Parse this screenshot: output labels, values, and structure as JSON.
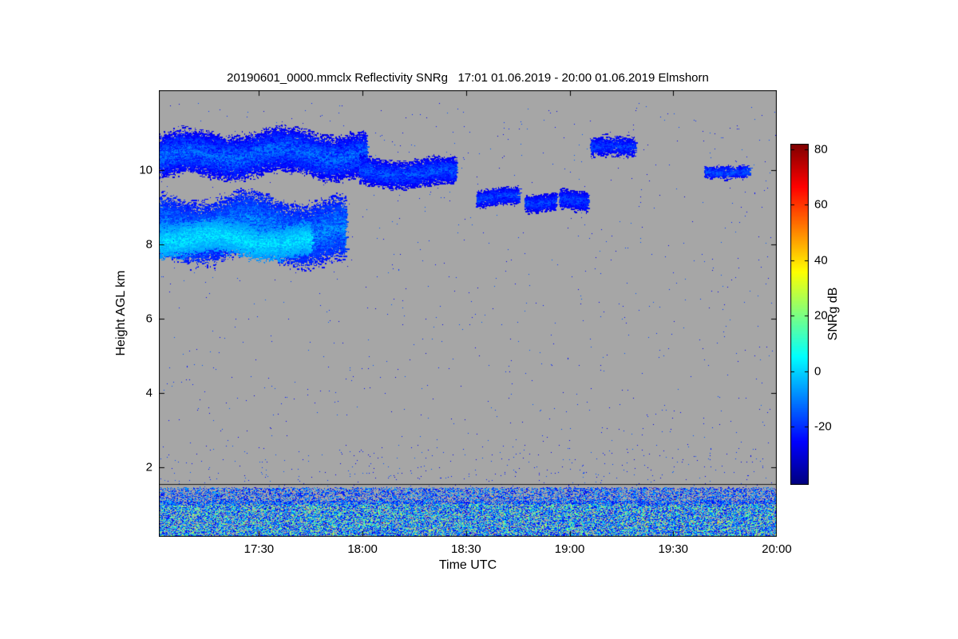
{
  "title": "20190601_0000.mmclx Reflectivity SNRg   17:01 01.06.2019 - 20:00 01.06.2019 Elmshorn",
  "chart_data": {
    "type": "heatmap",
    "title": "20190601_0000.mmclx Reflectivity SNRg   17:01 01.06.2019 - 20:00 01.06.2019 Elmshorn",
    "xlabel": "Time UTC",
    "ylabel": "Height AGL km",
    "time_start": "17:01",
    "time_end": "20:00",
    "x_ticks": [
      "17:30",
      "18:00",
      "18:30",
      "19:00",
      "19:30",
      "20:00"
    ],
    "x_tick_minutes": [
      29,
      59,
      89,
      119,
      149,
      179
    ],
    "x_range_minutes": [
      0,
      179
    ],
    "y_ticks": [
      2,
      4,
      6,
      8,
      10
    ],
    "ylim": [
      0.13,
      12.15
    ],
    "grid": false,
    "colorbar": {
      "label": "SNRg dB",
      "ticks": [
        80,
        60,
        40,
        20,
        0,
        -20
      ],
      "range": [
        -41,
        82
      ],
      "colormap": "jet",
      "position": "right"
    },
    "no_data_color": "#a6a6a6",
    "boundary_line_height_km": 1.53,
    "features": {
      "cloud_blobs": [
        {
          "label": "upper cloud band solid",
          "t_min": 0,
          "t_max": 60,
          "h_center": 10.35,
          "h_radius": 0.72,
          "snr_min": -30,
          "snr_max": -10,
          "points": 26000
        },
        {
          "label": "upper band broken",
          "t_min": 58,
          "t_max": 86,
          "h_center": 10.0,
          "h_radius": 0.45,
          "snr_min": -30,
          "snr_max": -13,
          "points": 7000
        },
        {
          "label": "fragment 18:33-18:45",
          "t_min": 92,
          "t_max": 104,
          "h_center": 9.25,
          "h_radius": 0.3,
          "snr_min": -30,
          "snr_max": -15,
          "points": 1700
        },
        {
          "label": "fragment 18:47-18:56",
          "t_min": 106,
          "t_max": 115,
          "h_center": 9.1,
          "h_radius": 0.28,
          "snr_min": -30,
          "snr_max": -15,
          "points": 1400
        },
        {
          "label": "fragment 18:57-19:05",
          "t_min": 116,
          "t_max": 124,
          "h_center": 9.2,
          "h_radius": 0.32,
          "snr_min": -30,
          "snr_max": -15,
          "points": 1500
        },
        {
          "label": "high fragment 19:06-19:19",
          "t_min": 125,
          "t_max": 138,
          "h_center": 10.65,
          "h_radius": 0.35,
          "snr_min": -30,
          "snr_max": -16,
          "points": 1200
        },
        {
          "label": "fragment 19:39-19:52",
          "t_min": 158,
          "t_max": 171,
          "h_center": 9.95,
          "h_radius": 0.22,
          "snr_min": -28,
          "snr_max": -14,
          "points": 1000
        },
        {
          "label": "lower cloud band",
          "t_min": 0,
          "t_max": 54,
          "h_center": 8.3,
          "h_radius": 1.0,
          "snr_min": -26,
          "snr_max": -6,
          "points": 30000
        },
        {
          "label": "lower band bright core",
          "t_min": 0,
          "t_max": 44,
          "h_center": 8.1,
          "h_radius": 0.55,
          "snr_min": -10,
          "snr_max": 4,
          "points": 14000
        }
      ],
      "surface_layer": {
        "t_min": 0,
        "t_max": 179,
        "h_min": 0.13,
        "h_max": 1.45,
        "points": 48000,
        "snr_blue_min": -30,
        "snr_blue_max": -2,
        "snr_green_min": 8,
        "snr_green_max": 28,
        "green_fraction": 0.3,
        "hot_fraction": 0.005,
        "hot_min": 35,
        "hot_max": 75
      },
      "speckle": {
        "points": 2300,
        "h_min": 0.13,
        "h_max": 11.8,
        "snr_min": -30,
        "snr_max": -14,
        "low_bias_fraction": 0.55,
        "low_max_h": 2.6
      }
    }
  }
}
